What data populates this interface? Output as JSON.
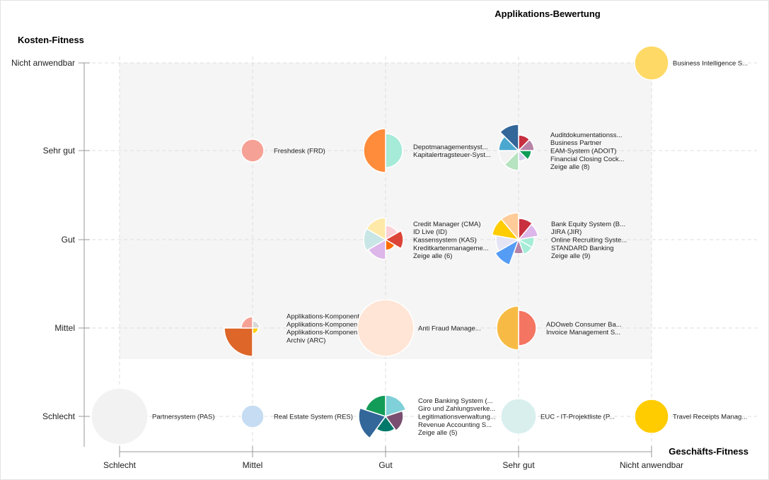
{
  "chart_data": {
    "type": "bubble-matrix",
    "title": "Applikations-Bewertung",
    "xlabel": "Geschäfts-Fitness",
    "ylabel": "Kosten-Fitness",
    "x_categories": [
      "Schlecht",
      "Mittel",
      "Gut",
      "Sehr gut",
      "Nicht anwendbar"
    ],
    "y_categories": [
      "Schlecht",
      "Mittel",
      "Gut",
      "Sehr gut",
      "Nicht anwendbar"
    ],
    "grid": true,
    "nodes": [
      {
        "x": "Nicht anwendbar",
        "y": "Nicht anwendbar",
        "slices": [
          {
            "color": "#ffd966",
            "size": 24
          }
        ],
        "labels": [
          "Business Intelligence S..."
        ]
      },
      {
        "x": "Mittel",
        "y": "Sehr gut",
        "slices": [
          {
            "color": "#f6a196",
            "size": 16
          }
        ],
        "labels": [
          "Freshdesk (FRD)"
        ]
      },
      {
        "x": "Gut",
        "y": "Sehr gut",
        "slices": [
          {
            "color": "#a6ead8",
            "size": 24
          },
          {
            "color": "#ff8c3a",
            "size": 31
          }
        ],
        "labels": [
          "Depotmanagementsyst...",
          "Kapitalertragsteuer-Syst..."
        ]
      },
      {
        "x": "Sehr gut",
        "y": "Sehr gut",
        "slices": [
          {
            "color": "#c8303f",
            "size": 22
          },
          {
            "color": "#b784a7",
            "size": 22
          },
          {
            "color": "#0f9d58",
            "size": 18
          },
          {
            "color": "#d4d0ec",
            "size": 15
          },
          {
            "color": "#b6e3c0",
            "size": 28
          },
          {
            "color": "#f2f2f2",
            "size": 28
          },
          {
            "color": "#4aa8d0",
            "size": 28
          },
          {
            "color": "#336699",
            "size": 37
          }
        ],
        "labels": [
          "Auditdokumentationss...",
          "Business Partner",
          "EAM-System (ADOIT)",
          "Financial Closing Cock...",
          "Zeige alle (8)"
        ]
      },
      {
        "x": "Gut",
        "y": "Gut",
        "slices": [
          {
            "color": "#fcd0d6",
            "size": 20
          },
          {
            "color": "#db4437",
            "size": 25
          },
          {
            "color": "#ff6a00",
            "size": 15
          },
          {
            "color": "#ddb6ea",
            "size": 28
          },
          {
            "color": "#c9e6e6",
            "size": 31
          },
          {
            "color": "#ffe9a8",
            "size": 31
          }
        ],
        "labels": [
          "Credit Manager (CMA)",
          "ID Live (ID)",
          "Kassensystem (KAS)",
          "Kreditkartenmanageme...",
          "Zeige alle (6)"
        ]
      },
      {
        "x": "Sehr gut",
        "y": "Gut",
        "slices": [
          {
            "color": "#c8303f",
            "size": 30
          },
          {
            "color": "#ddb6ea",
            "size": 28
          },
          {
            "color": "#a6ecd6",
            "size": 22
          },
          {
            "color": "#a6ecd6",
            "size": 22
          },
          {
            "color": "#b784a7",
            "size": 20
          },
          {
            "color": "#559cf5",
            "size": 38
          },
          {
            "color": "#e4e4f5",
            "size": 32
          },
          {
            "color": "#ffcc00",
            "size": 38
          },
          {
            "color": "#ffcc99",
            "size": 38
          }
        ],
        "labels": [
          "Bank Equity System (B...",
          "JIRA (JIR)",
          "Online Recruiting Syste...",
          "STANDARD Banking",
          "Zeige alle (9)"
        ]
      },
      {
        "x": "Mittel",
        "y": "Mittel",
        "slices": [
          {
            "color": "#d9d9d9",
            "size": 10
          },
          {
            "color": "#ffcc00",
            "size": 8
          },
          {
            "color": "#dd6628",
            "size": 40
          },
          {
            "color": "#f6a196",
            "size": 16
          }
        ],
        "labels": [
          "Applikations-Komponente",
          "Applikations-Komponente (...",
          "Applikations-Komponente (...",
          "Archiv (ARC)"
        ]
      },
      {
        "x": "Gut",
        "y": "Mittel",
        "slices": [
          {
            "color": "#ffe5d6",
            "size": 40
          }
        ],
        "labels": [
          "Anti Fraud Manage..."
        ]
      },
      {
        "x": "Sehr gut",
        "y": "Mittel",
        "slices": [
          {
            "color": "#f47562",
            "size": 25
          },
          {
            "color": "#f7bb45",
            "size": 31
          }
        ],
        "labels": [
          "ADOweb Consumer Ba...",
          "Invoice Management S..."
        ]
      },
      {
        "x": "Schlecht",
        "y": "Schlecht",
        "slices": [
          {
            "color": "#f2f2f2",
            "size": 40
          }
        ],
        "labels": [
          "Partnersystem (PAS)"
        ]
      },
      {
        "x": "Mittel",
        "y": "Schlecht",
        "slices": [
          {
            "color": "#c5dcf2",
            "size": 16
          }
        ],
        "labels": [
          "Real Estate System (RES)"
        ]
      },
      {
        "x": "Gut",
        "y": "Schlecht",
        "slices": [
          {
            "color": "#7fd0d8",
            "size": 30
          },
          {
            "color": "#7a4e70",
            "size": 25
          },
          {
            "color": "#00796b",
            "size": 22
          },
          {
            "color": "#336699",
            "size": 38
          },
          {
            "color": "#139c58",
            "size": 30
          }
        ],
        "labels": [
          "Core Banking System (...",
          "Giro und Zahlungsverke...",
          "Legitimationsverwaltung...",
          "Revenue Accounting S...",
          "Zeige alle (5)"
        ]
      },
      {
        "x": "Sehr gut",
        "y": "Schlecht",
        "slices": [
          {
            "color": "#d8efee",
            "size": 25
          }
        ],
        "labels": [
          "EUC - IT-Projektliste (P..."
        ]
      },
      {
        "x": "Nicht anwendbar",
        "y": "Schlecht",
        "slices": [
          {
            "color": "#ffcc00",
            "size": 24
          }
        ],
        "labels": [
          "Travel Receipts Manag..."
        ]
      }
    ]
  }
}
